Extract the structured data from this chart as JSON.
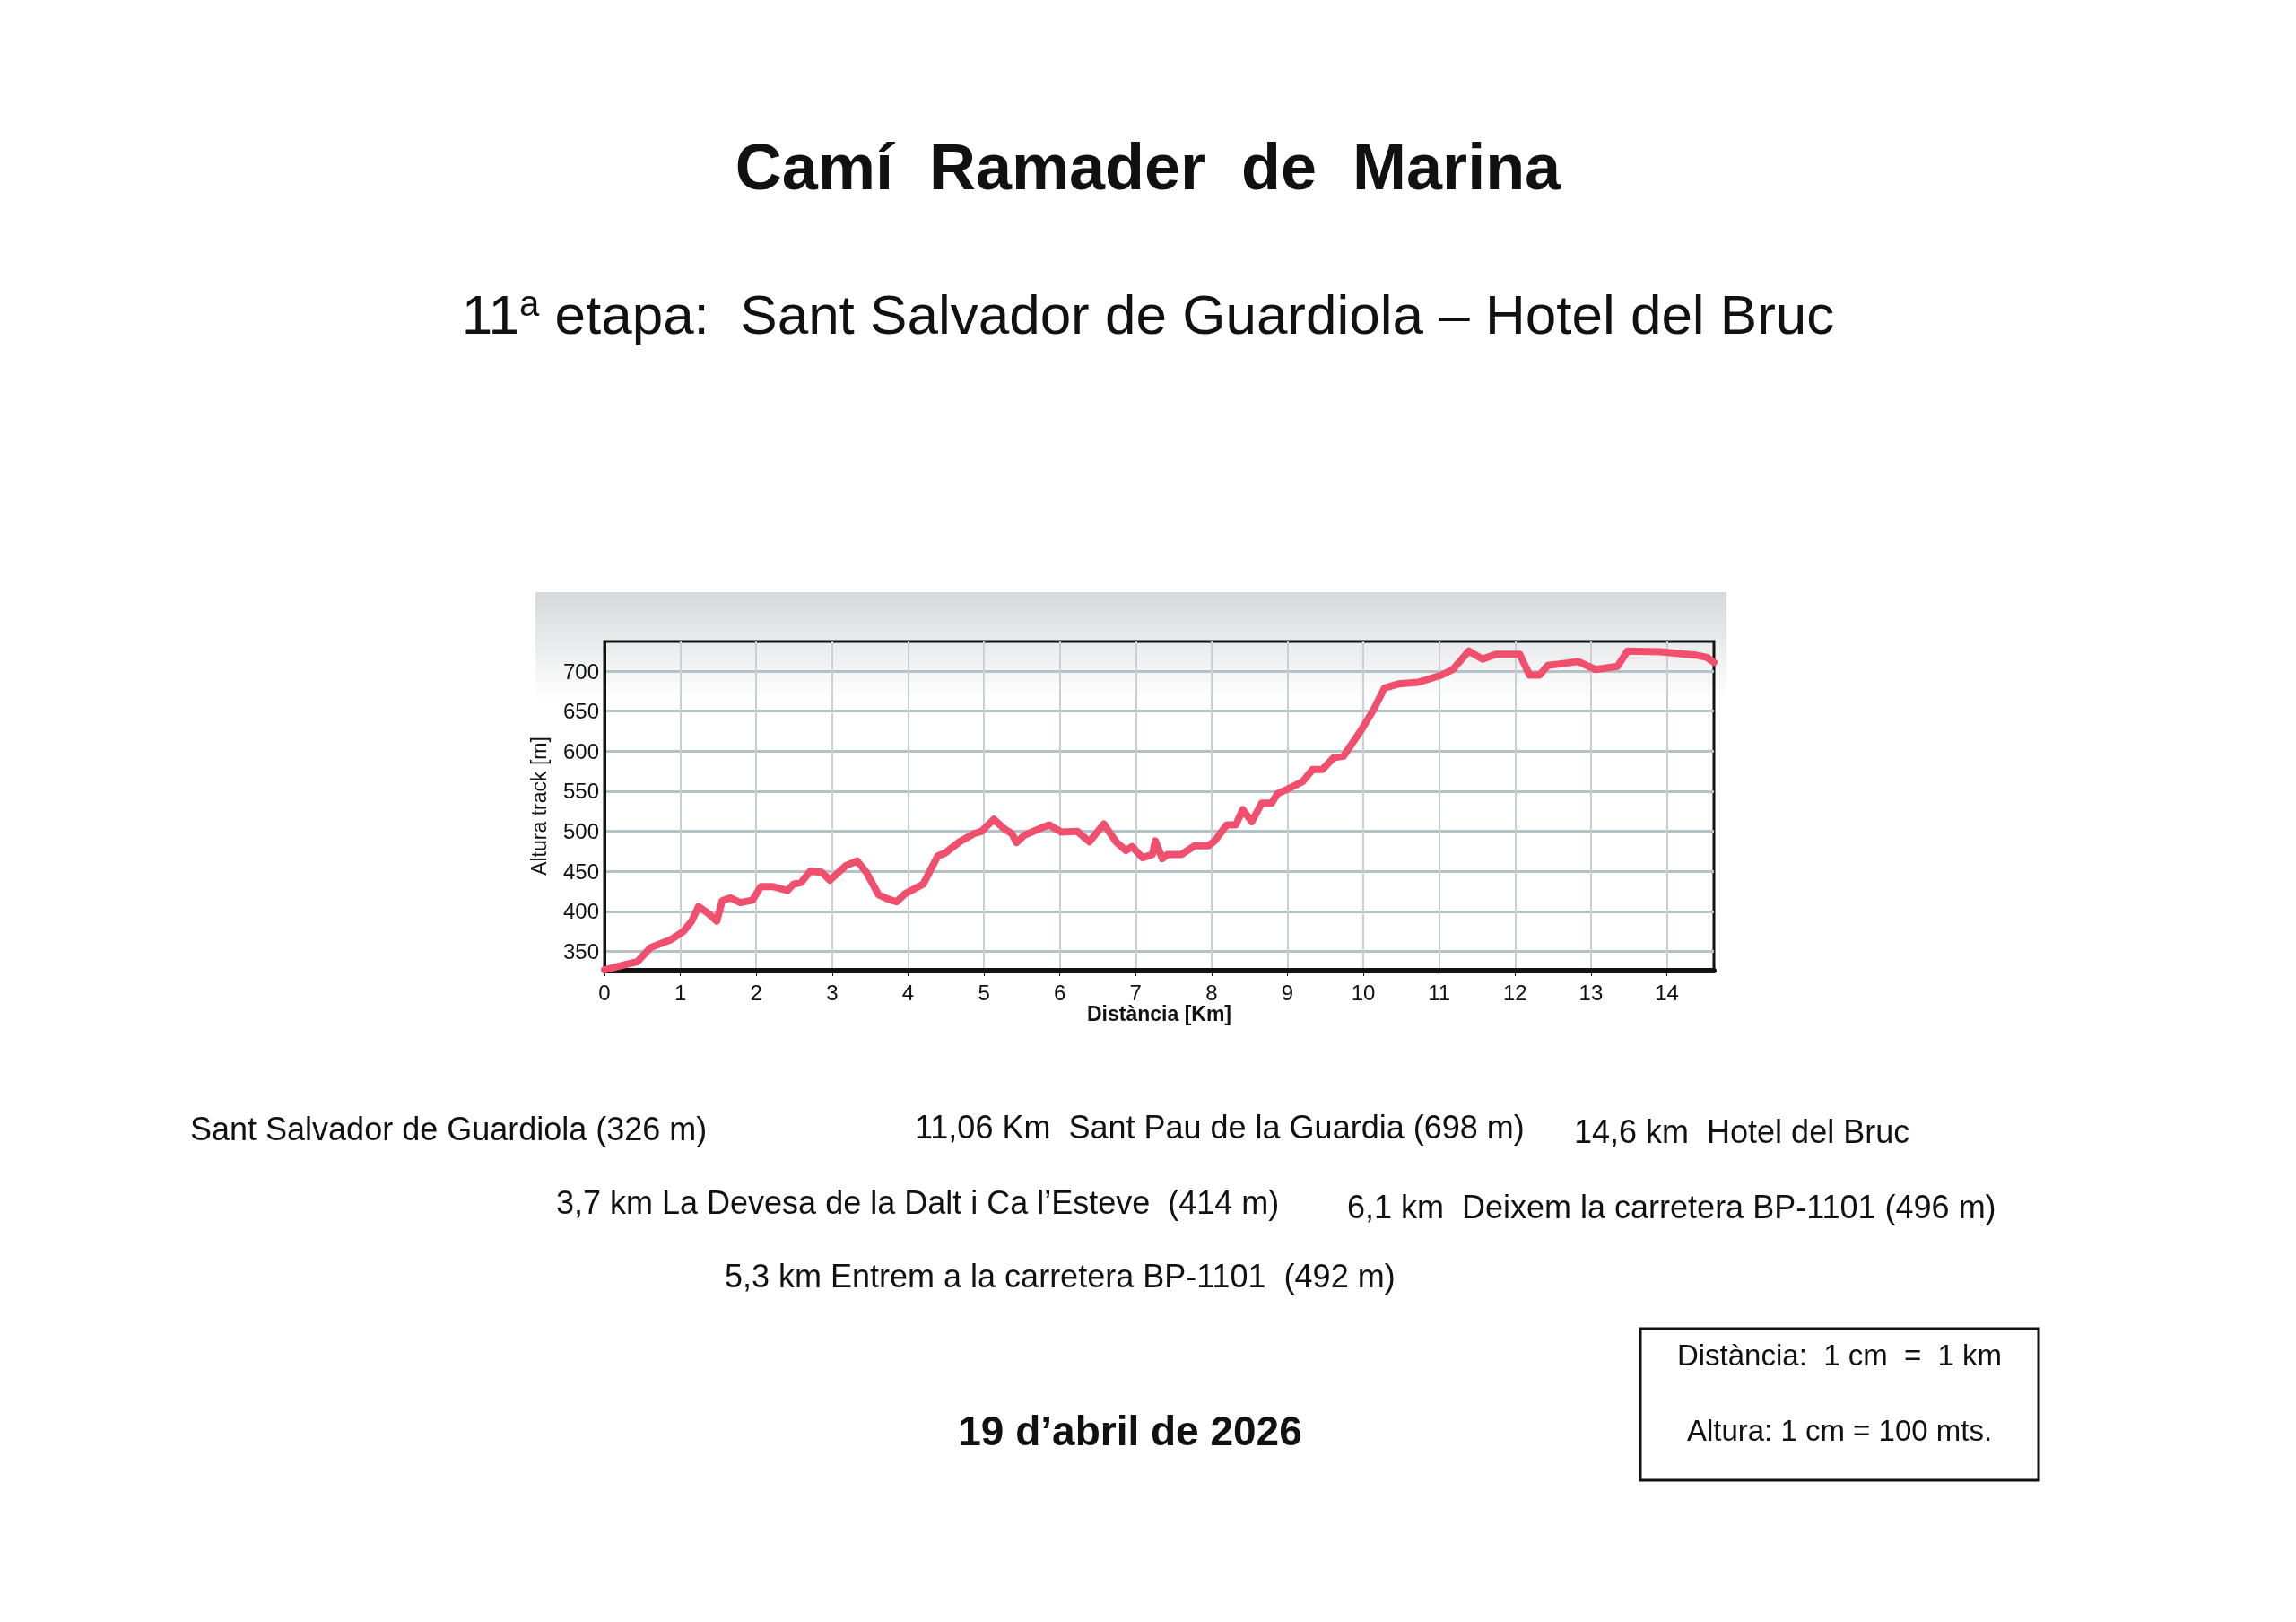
{
  "chart_data": {
    "type": "line",
    "title": "Camí  Ramader  de  Marina",
    "subtitle": "11$^{a}$ etapa:  Sant Salvador de Guardiola – Hotel del Bruc",
    "xlabel": "Distància [Km]",
    "ylabel": "Altura track [m]",
    "x": [
      0,
      0.29,
      0.43,
      0.61,
      0.88,
      1.04,
      1.15,
      1.24,
      1.36,
      1.48,
      1.55,
      1.66,
      1.79,
      1.95,
      2.06,
      2.22,
      2.41,
      2.49,
      2.59,
      2.71,
      2.86,
      2.97,
      3.18,
      3.33,
      3.45,
      3.61,
      3.72,
      3.85,
      3.96,
      4.2,
      4.39,
      4.49,
      4.68,
      4.87,
      4.97,
      5.13,
      5.27,
      5.37,
      5.43,
      5.53,
      5.75,
      5.86,
      6.02,
      6.23,
      6.39,
      6.58,
      6.74,
      6.87,
      6.95,
      7.09,
      7.22,
      7.26,
      7.35,
      7.42,
      7.6,
      7.78,
      7.96,
      8.04,
      8.2,
      8.32,
      8.41,
      8.53,
      8.66,
      8.79,
      8.87,
      8.99,
      9.2,
      9.33,
      9.46,
      9.61,
      9.74,
      9.97,
      10.13,
      10.28,
      10.46,
      10.72,
      11.03,
      11.18,
      11.39,
      11.57,
      11.75,
      12.06,
      12.19,
      12.32,
      12.43,
      12.68,
      12.83,
      13.06,
      13.35,
      13.48,
      13.91,
      14.38,
      14.53,
      14.62
    ],
    "series": [
      {
        "color": "#f0506e",
        "values": [
          327,
          334,
          337,
          355,
          365,
          375,
          388,
          406,
          398,
          388,
          413,
          417,
          411,
          414,
          431,
          431,
          426,
          434,
          436,
          450,
          449,
          439,
          457,
          463,
          449,
          421,
          416,
          412,
          422,
          434,
          469,
          473,
          487,
          497,
          500,
          515,
          503,
          497,
          486,
          495,
          504,
          508,
          499,
          500,
          487,
          509,
          487,
          476,
          481,
          467,
          471,
          488,
          466,
          471,
          471,
          482,
          482,
          488,
          508,
          508,
          527,
          512,
          535,
          535,
          547,
          552,
          562,
          577,
          577,
          592,
          594,
          626,
          651,
          679,
          684,
          686,
          695,
          702,
          725,
          715,
          721,
          721,
          695,
          695,
          707,
          710,
          712,
          702,
          706,
          725,
          724,
          720,
          717,
          711
        ]
      }
    ],
    "xlim": [
      0,
      14.62
    ],
    "xticks": [
      0,
      1,
      2,
      3,
      4,
      5,
      6,
      7,
      8,
      9,
      10,
      11,
      12,
      13,
      14
    ],
    "ylim": [
      326,
      737
    ],
    "yticks": [
      350,
      400,
      450,
      500,
      550,
      600,
      650,
      700
    ],
    "grid": true,
    "marker": "none",
    "line_style": "solid",
    "annotations": [
      "Sant Salvador de Guardiola (326 m)",
      "11,06 Km  Sant Pau de la Guardia (698 m)",
      "14,6 km  Hotel del Bruc",
      "3,7 km La Devesa de la Dalt i Ca l’Esteve  (414 m)",
      "6,1 km  Deixem la carretera BP-1101 (496 m)",
      "5,3 km Entrem a la carretera BP-1101  (492 m)",
      "19 d’abril de 2026",
      "Distància:  1 cm  =  1 km",
      "Altura: 1 cm = 100 mts."
    ]
  }
}
